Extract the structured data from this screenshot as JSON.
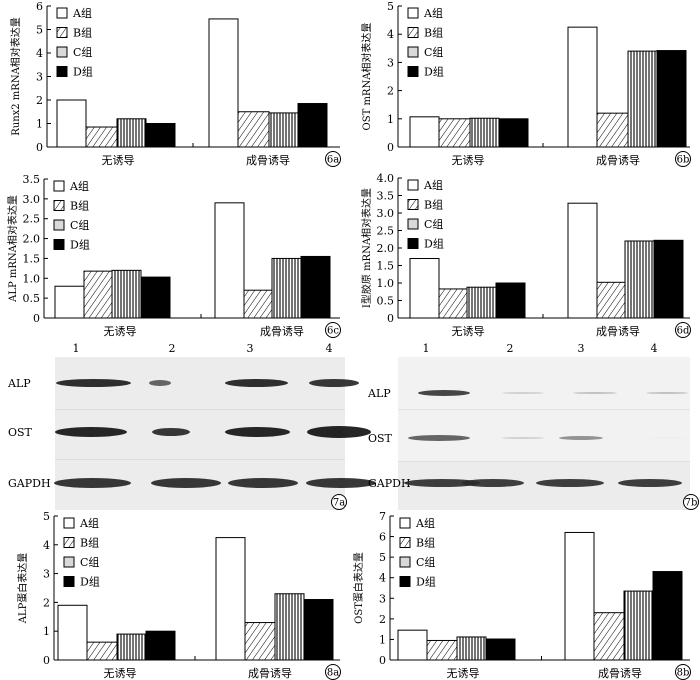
{
  "legend": [
    "A组",
    "B组",
    "C组",
    "D组"
  ],
  "colors": {
    "A": "#ffffff",
    "D": "#000000",
    "stroke": "#000000"
  },
  "charts": [
    {
      "id": "6a",
      "type": "bar",
      "ylabel": "Runx2 mRNA相对表达量",
      "ylim": [
        0,
        6
      ],
      "ticks": [
        0,
        1,
        2,
        3,
        4,
        5,
        6
      ],
      "tick_labels": [
        "0",
        "1",
        "2",
        "3",
        "4",
        "5",
        "6"
      ],
      "categories": [
        "无诱导",
        "成骨诱导"
      ],
      "series": [
        {
          "name": "A组",
          "values": [
            2.0,
            5.45
          ]
        },
        {
          "name": "B组",
          "values": [
            0.85,
            1.5
          ]
        },
        {
          "name": "C组",
          "values": [
            1.2,
            1.45
          ]
        },
        {
          "name": "D组",
          "values": [
            1.0,
            1.85
          ]
        }
      ]
    },
    {
      "id": "6b",
      "type": "bar",
      "ylabel": "OST mRNA相对表达量",
      "ylim": [
        0,
        5
      ],
      "ticks": [
        0,
        1,
        2,
        3,
        4,
        5
      ],
      "tick_labels": [
        "0",
        "1",
        "2",
        "3",
        "4",
        "5"
      ],
      "categories": [
        "无诱导",
        "成骨诱导"
      ],
      "series": [
        {
          "name": "A组",
          "values": [
            1.07,
            4.25
          ]
        },
        {
          "name": "B组",
          "values": [
            1.0,
            1.2
          ]
        },
        {
          "name": "C组",
          "values": [
            1.02,
            3.4
          ]
        },
        {
          "name": "D组",
          "values": [
            1.0,
            3.42
          ]
        }
      ]
    },
    {
      "id": "6c",
      "type": "bar",
      "ylabel": "ALP mRNA相对表达量",
      "ylim": [
        0,
        3.5
      ],
      "ticks": [
        0,
        0.5,
        1,
        1.5,
        2,
        2.5,
        3,
        3.5
      ],
      "tick_labels": [
        "0",
        "0.5",
        "1.0",
        "1.5",
        "2.0",
        "2.5",
        "3.0",
        "3.5"
      ],
      "categories": [
        "无诱导",
        "成骨诱导"
      ],
      "series": [
        {
          "name": "A组",
          "values": [
            0.8,
            2.9
          ]
        },
        {
          "name": "B组",
          "values": [
            1.18,
            0.7
          ]
        },
        {
          "name": "C组",
          "values": [
            1.2,
            1.5
          ]
        },
        {
          "name": "D组",
          "values": [
            1.03,
            1.55
          ]
        }
      ]
    },
    {
      "id": "6d",
      "type": "bar",
      "ylabel": "Ⅰ型胶原 mRNA相对表达量",
      "ylim": [
        0,
        4
      ],
      "ticks": [
        0,
        0.5,
        1,
        1.5,
        2,
        2.5,
        3,
        3.5,
        4
      ],
      "tick_labels": [
        "0",
        "0.5",
        "1.0",
        "1.5",
        "2.0",
        "2.5",
        "3.0",
        "3.5",
        "4.0"
      ],
      "categories": [
        "无诱导",
        "成骨诱导"
      ],
      "series": [
        {
          "name": "A组",
          "values": [
            1.7,
            3.28
          ]
        },
        {
          "name": "B组",
          "values": [
            0.83,
            1.02
          ]
        },
        {
          "name": "C组",
          "values": [
            0.88,
            2.2
          ]
        },
        {
          "name": "D组",
          "values": [
            1.0,
            2.22
          ]
        }
      ]
    },
    {
      "id": "8a",
      "type": "bar",
      "ylabel": "ALP蛋白表达量",
      "ylim": [
        0,
        5
      ],
      "ticks": [
        0,
        1,
        2,
        3,
        4,
        5
      ],
      "tick_labels": [
        "0",
        "1",
        "2",
        "3",
        "4",
        "5"
      ],
      "categories": [
        "无诱导",
        "成骨诱导"
      ],
      "series": [
        {
          "name": "A组",
          "values": [
            1.9,
            4.25
          ]
        },
        {
          "name": "B组",
          "values": [
            0.62,
            1.3
          ]
        },
        {
          "name": "C组",
          "values": [
            0.9,
            2.3
          ]
        },
        {
          "name": "D组",
          "values": [
            1.0,
            2.1
          ]
        }
      ]
    },
    {
      "id": "8b",
      "type": "bar",
      "ylabel": "OST蛋白表达量",
      "ylim": [
        0,
        7
      ],
      "ticks": [
        0,
        1,
        2,
        3,
        4,
        5,
        6,
        7
      ],
      "tick_labels": [
        "0",
        "1",
        "2",
        "3",
        "4",
        "5",
        "6",
        "7"
      ],
      "categories": [
        "无诱导",
        "成骨诱导"
      ],
      "series": [
        {
          "name": "A组",
          "values": [
            1.45,
            6.2
          ]
        },
        {
          "name": "B组",
          "values": [
            0.95,
            2.3
          ]
        },
        {
          "name": "C组",
          "values": [
            1.12,
            3.35
          ]
        },
        {
          "name": "D组",
          "values": [
            1.02,
            4.3
          ]
        }
      ]
    }
  ],
  "blots": [
    {
      "id": "7a",
      "lanes": [
        "1",
        "2",
        "3",
        "4"
      ],
      "rows": [
        "ALP",
        "OST",
        "GAPDH"
      ]
    },
    {
      "id": "7b",
      "lanes": [
        "1",
        "2",
        "3",
        "4"
      ],
      "rows": [
        "ALP",
        "OST",
        "GAPDH"
      ]
    }
  ]
}
